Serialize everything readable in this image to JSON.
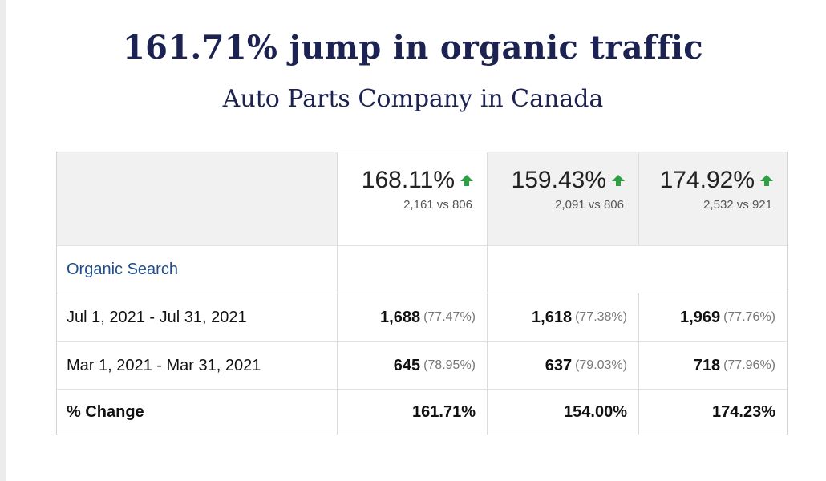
{
  "title": "161.71% jump in organic traffic",
  "subtitle": "Auto Parts Company in Canada",
  "colors": {
    "title": "#1c2352",
    "link": "#1f4e8c",
    "up_arrow": "#2ea043"
  },
  "header": [
    {
      "pct": "168.11%",
      "vs": "2,161 vs 806",
      "icon": "up-arrow-icon"
    },
    {
      "pct": "159.43%",
      "vs": "2,091 vs 806",
      "icon": "up-arrow-icon"
    },
    {
      "pct": "174.92%",
      "vs": "2,532 vs 921",
      "icon": "up-arrow-icon"
    }
  ],
  "segment_label": "Organic Search",
  "rows": [
    {
      "label": "Jul 1, 2021 - Jul 31, 2021",
      "cells": [
        {
          "value": "1,688",
          "share": "(77.47%)"
        },
        {
          "value": "1,618",
          "share": "(77.38%)"
        },
        {
          "value": "1,969",
          "share": "(77.76%)"
        }
      ]
    },
    {
      "label": "Mar 1, 2021 - Mar 31, 2021",
      "cells": [
        {
          "value": "645",
          "share": "(78.95%)"
        },
        {
          "value": "637",
          "share": "(79.03%)"
        },
        {
          "value": "718",
          "share": "(77.96%)"
        }
      ]
    }
  ],
  "change": {
    "label": "% Change",
    "values": [
      "161.71%",
      "154.00%",
      "174.23%"
    ]
  }
}
